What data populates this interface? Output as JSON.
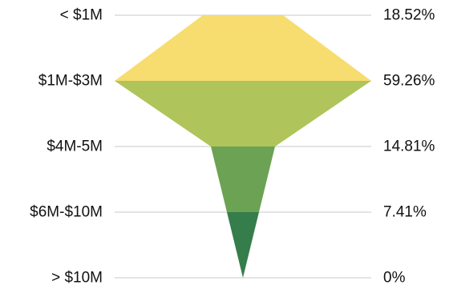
{
  "chart_data": {
    "type": "area",
    "categories": [
      "< $1M",
      "$1M-$3M",
      "$4M-5M",
      "$6M-$10M",
      "> $10M"
    ],
    "values": [
      18.52,
      59.26,
      14.81,
      7.41,
      0
    ],
    "value_labels": [
      "18.52%",
      "59.26%",
      "14.81%",
      "7.41%",
      "0%"
    ],
    "colors": [
      "#f7dc6f",
      "#afc45a",
      "#6ca253",
      "#367d4c"
    ],
    "grid": true
  }
}
